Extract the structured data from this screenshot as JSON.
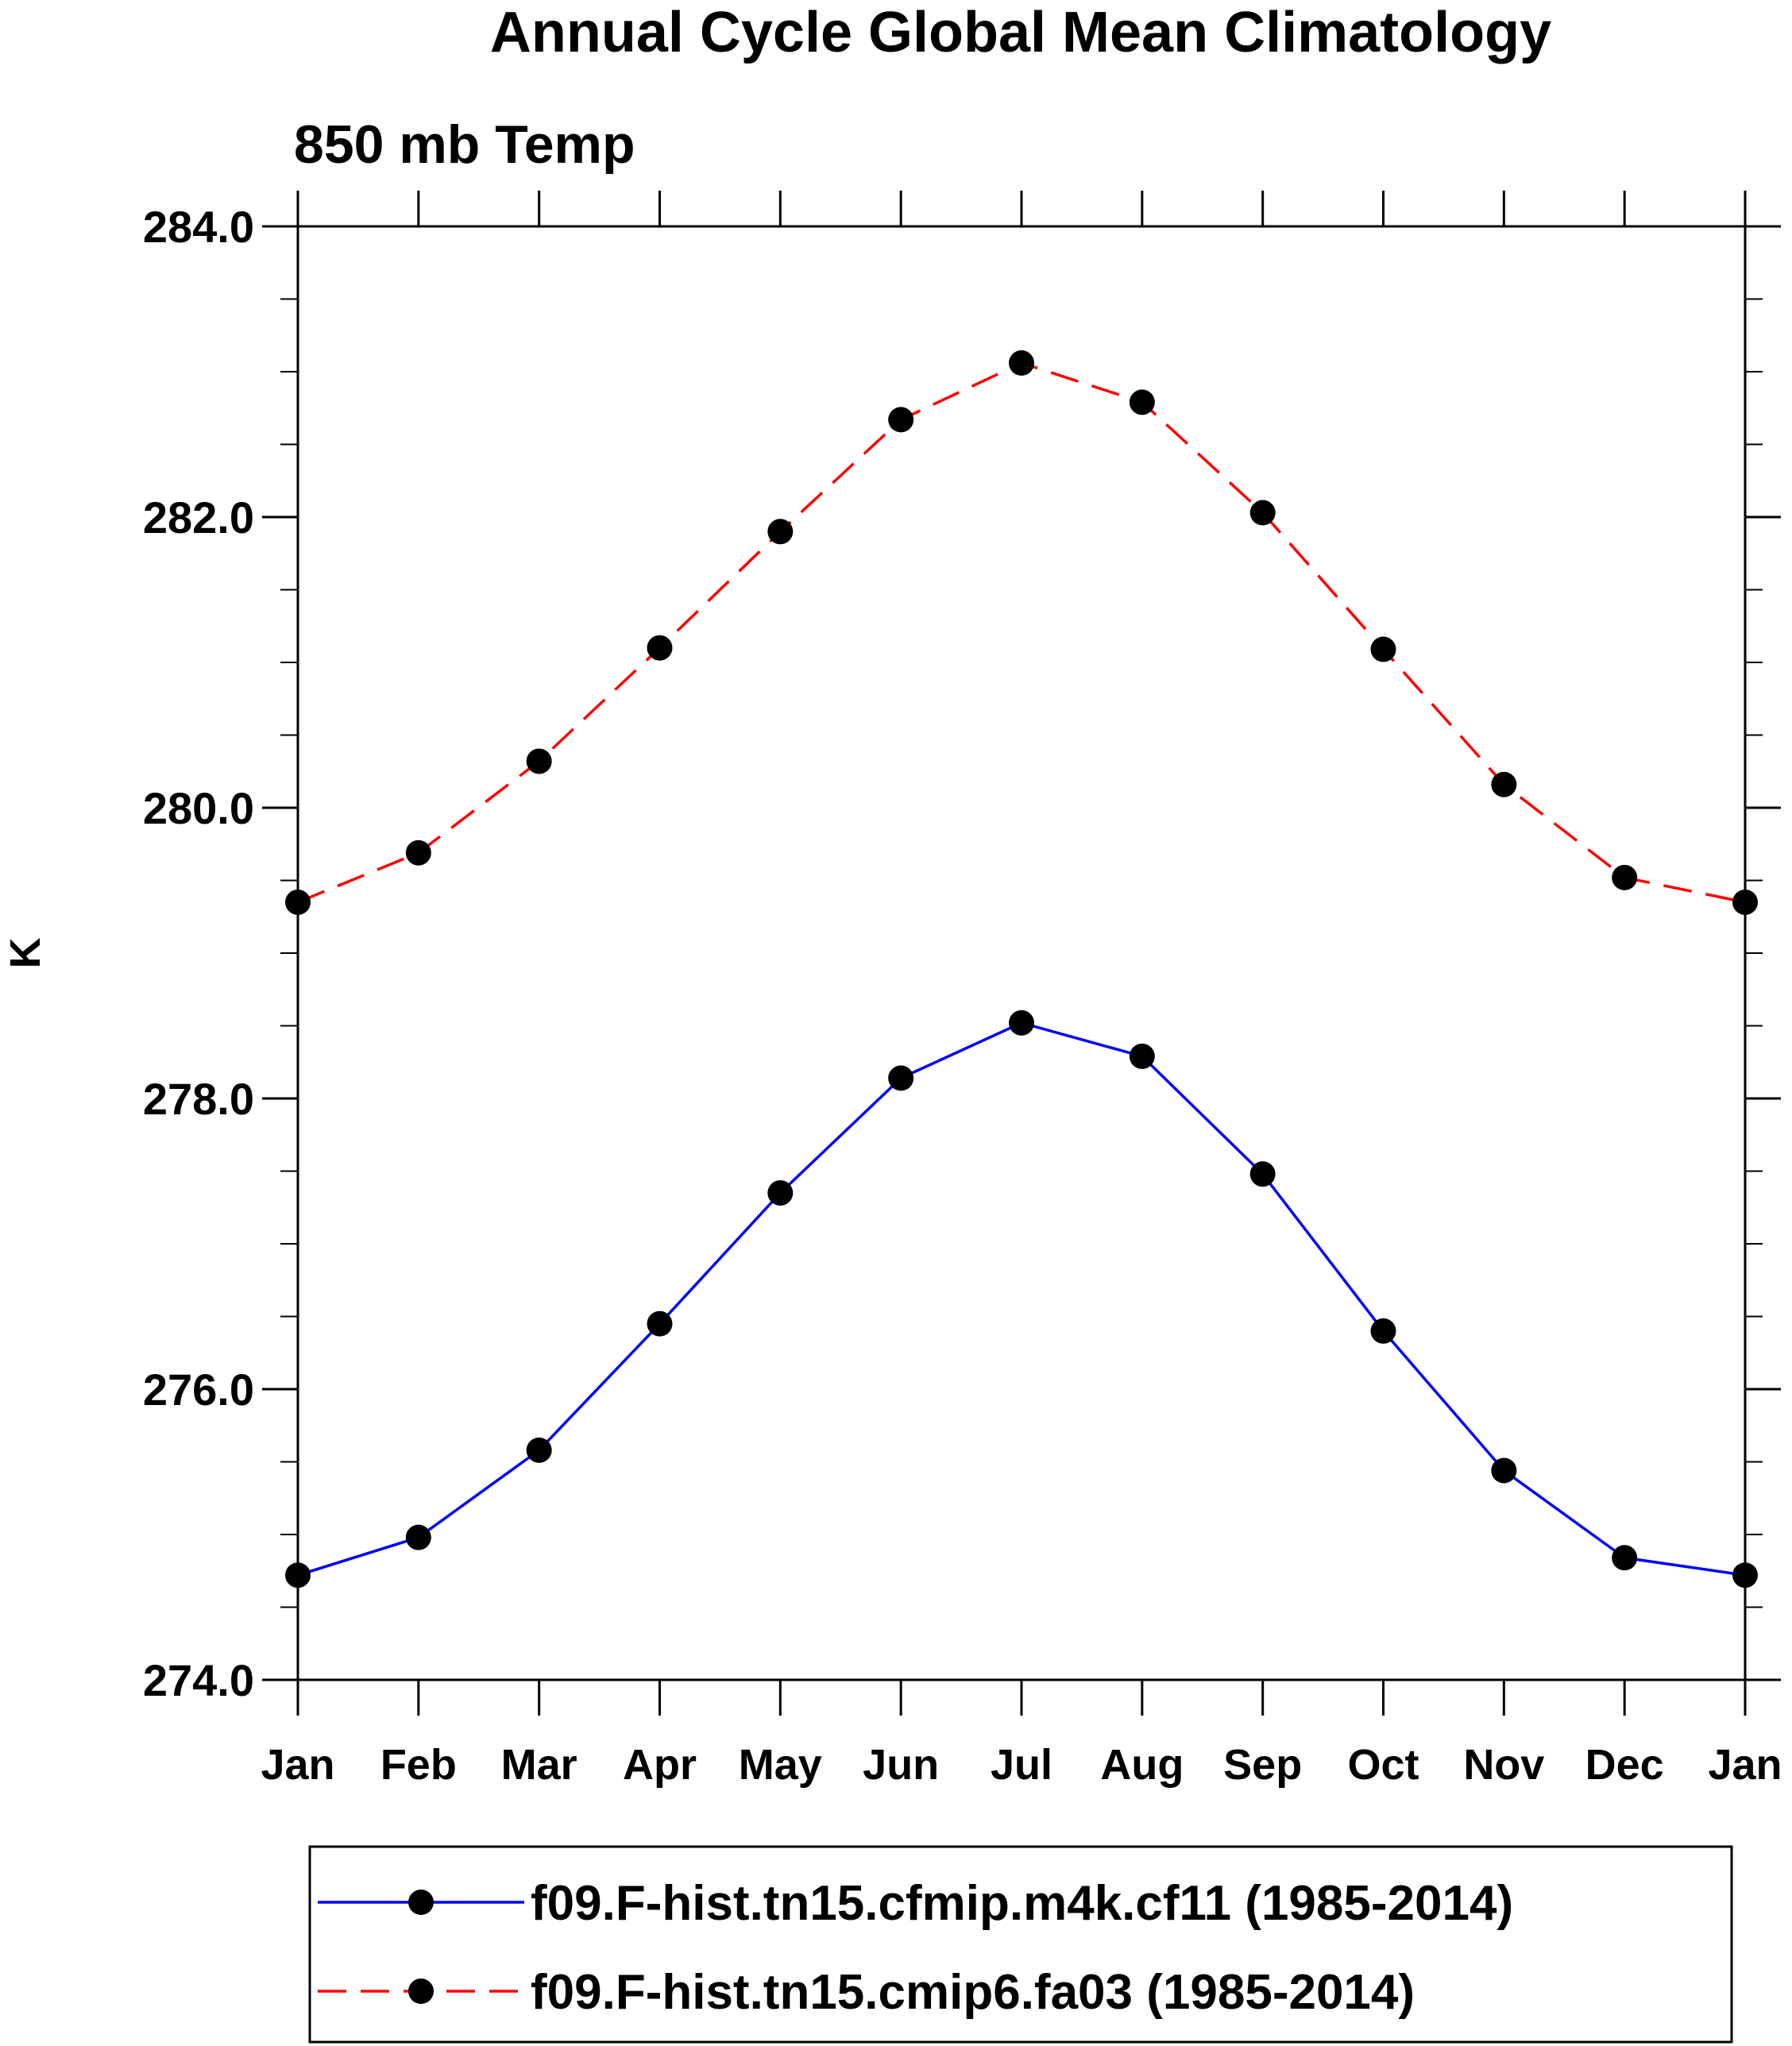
{
  "chart_data": {
    "type": "line",
    "title": "Annual Cycle Global Mean Climatology",
    "subtitle": "850 mb Temp",
    "xlabel": "",
    "ylabel": "K",
    "ylim": [
      274.0,
      284.0
    ],
    "y_ticks": [
      "274.0",
      "276.0",
      "278.0",
      "280.0",
      "282.0",
      "284.0"
    ],
    "y_tick_values": [
      274,
      276,
      278,
      280,
      282,
      284
    ],
    "categories": [
      "Jan",
      "Feb",
      "Mar",
      "Apr",
      "May",
      "Jun",
      "Jul",
      "Aug",
      "Sep",
      "Oct",
      "Nov",
      "Dec",
      "Jan"
    ],
    "grid": false,
    "legend_position": "bottom",
    "series": [
      {
        "name": "f09.F-hist.tn15.cfmip.m4k.cf11 (1985-2014)",
        "color": "#0000ff",
        "line_style": "solid",
        "marker": "filled-circle",
        "values": [
          274.72,
          274.98,
          275.58,
          276.45,
          277.35,
          278.14,
          278.52,
          278.29,
          277.48,
          276.4,
          275.44,
          274.84,
          274.72
        ]
      },
      {
        "name": "f09.F-hist.tn15.cmip6.fa03 (1985-2014)",
        "color": "#ff0000",
        "line_style": "dashed",
        "marker": "filled-circle",
        "values": [
          279.35,
          279.69,
          280.32,
          281.1,
          281.9,
          282.67,
          283.06,
          282.79,
          282.03,
          281.09,
          280.16,
          279.52,
          279.35
        ]
      }
    ]
  }
}
